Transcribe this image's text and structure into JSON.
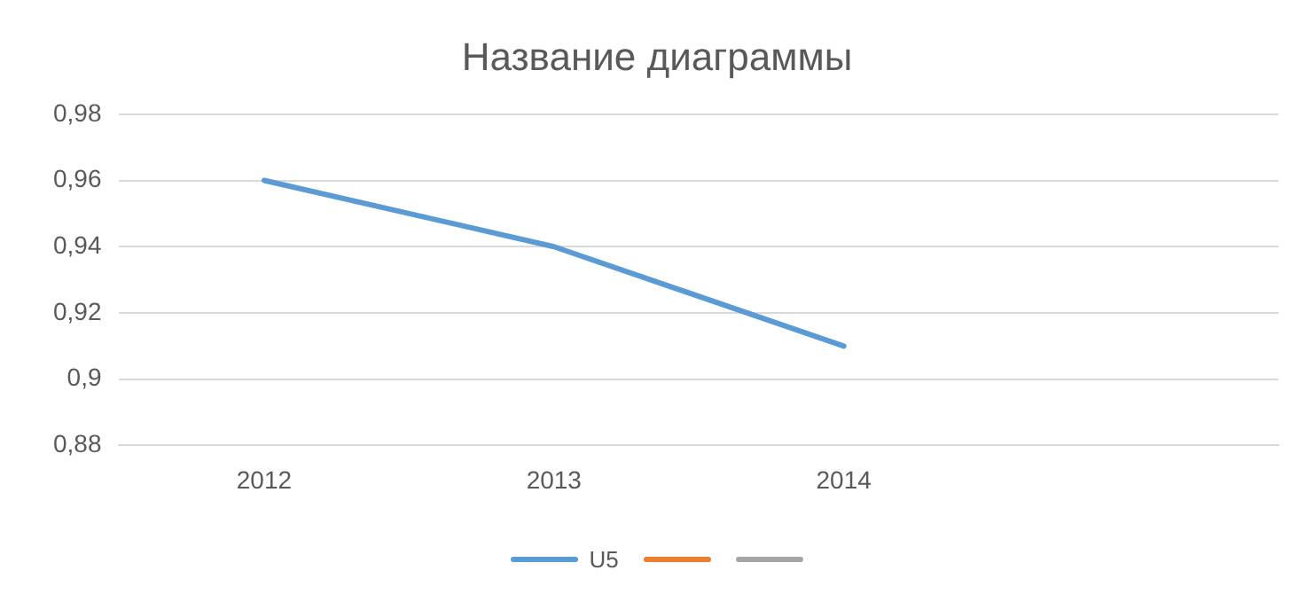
{
  "chart_data": {
    "type": "line",
    "title": "Название диаграммы",
    "categories": [
      "2012",
      "2013",
      "2014",
      null
    ],
    "series": [
      {
        "name": "U5",
        "color": "#5b9bd5",
        "values": [
          0.96,
          0.94,
          0.91,
          null
        ]
      },
      {
        "color": "#ed7d31",
        "values": [
          null,
          null,
          null,
          null
        ]
      },
      {
        "color": "#a5a5a5",
        "values": [
          null,
          null,
          null,
          null
        ]
      }
    ],
    "ylim": [
      0.88,
      0.98
    ],
    "yticks": [
      {
        "value": 0.88,
        "label": "0,88"
      },
      {
        "value": 0.9,
        "label": "0,9"
      },
      {
        "value": 0.92,
        "label": "0,92"
      },
      {
        "value": 0.94,
        "label": "0,94"
      },
      {
        "value": 0.96,
        "label": "0,96"
      },
      {
        "value": 0.98,
        "label": "0,98"
      }
    ],
    "grid": "y",
    "legend": "bottom",
    "marker": "none",
    "line_style": "solid"
  }
}
